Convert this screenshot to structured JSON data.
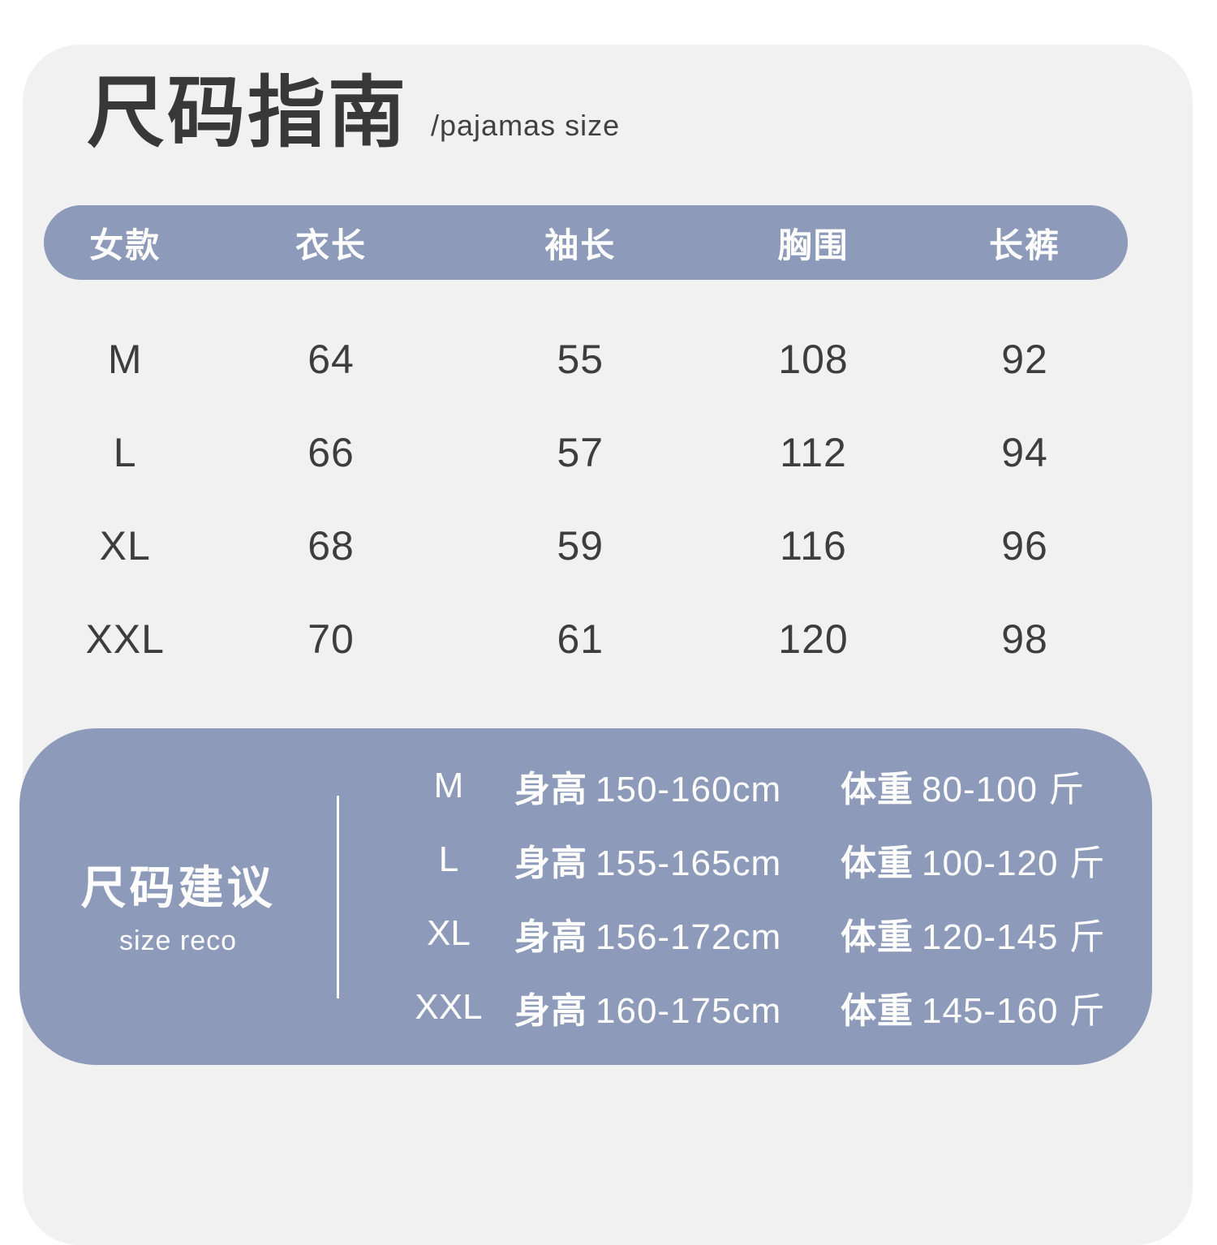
{
  "page": {
    "title": "尺码指南",
    "subtitle": "/pajamas size"
  },
  "table": {
    "headers": [
      "女款",
      "衣长",
      "袖长",
      "胸围",
      "长裤"
    ],
    "rows": [
      {
        "size": "M",
        "values": [
          "64",
          "55",
          "108",
          "92"
        ]
      },
      {
        "size": "L",
        "values": [
          "66",
          "57",
          "112",
          "94"
        ]
      },
      {
        "size": "XL",
        "values": [
          "68",
          "59",
          "116",
          "96"
        ]
      },
      {
        "size": "XXL",
        "values": [
          "70",
          "61",
          "120",
          "98"
        ]
      }
    ]
  },
  "recommendation": {
    "title": "尺码建议",
    "subtitle": "size reco",
    "height_label": "身高",
    "weight_label": "体重",
    "rows": [
      {
        "size": "M",
        "height": "150-160cm",
        "weight": "80-100 斤"
      },
      {
        "size": "L",
        "height": "155-165cm",
        "weight": "100-120 斤"
      },
      {
        "size": "XL",
        "height": "156-172cm",
        "weight": "120-145 斤"
      },
      {
        "size": "XXL",
        "height": "160-175cm",
        "weight": "145-160 斤"
      }
    ]
  },
  "colors": {
    "accent": "#8d9ab9",
    "card_background": "#f1f1f2",
    "text": "#3d3d3d"
  }
}
